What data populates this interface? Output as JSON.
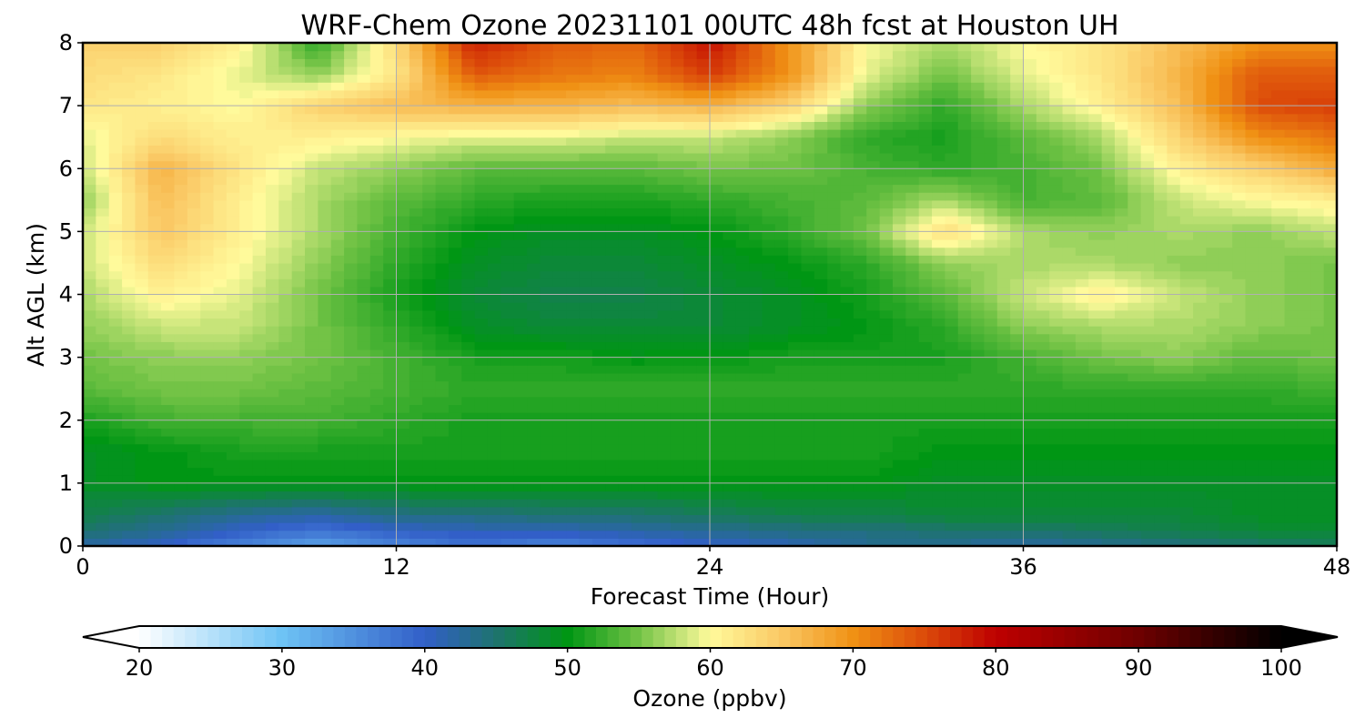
{
  "chart_data": {
    "type": "heatmap",
    "title": "WRF-Chem Ozone  20231101 00UTC 48h fcst at Houston UH",
    "xlabel": "Forecast Time (Hour)",
    "ylabel": "Alt AGL (km)",
    "xlim": [
      0,
      48
    ],
    "ylim": [
      0,
      8
    ],
    "x_ticks": [
      0,
      12,
      24,
      36,
      48
    ],
    "y_ticks": [
      0,
      1,
      2,
      3,
      4,
      5,
      6,
      7,
      8
    ],
    "grid": true,
    "x": [
      0,
      3,
      6,
      9,
      12,
      15,
      18,
      21,
      24,
      27,
      30,
      33,
      36,
      39,
      42,
      45,
      48
    ],
    "y": [
      0,
      0.25,
      0.5,
      1,
      1.5,
      2,
      2.5,
      3,
      3.5,
      4,
      4.5,
      5,
      5.5,
      6,
      6.5,
      7,
      7.5,
      8
    ],
    "z": [
      [
        42,
        40,
        36,
        33,
        36,
        38,
        36,
        38,
        40,
        41,
        43,
        43,
        42,
        43,
        44,
        45,
        46
      ],
      [
        45,
        43,
        40,
        38,
        40,
        41,
        41,
        42,
        43,
        44,
        44,
        45,
        45,
        46,
        47,
        48,
        48
      ],
      [
        47,
        45,
        43,
        42,
        44,
        44,
        45,
        45,
        46,
        47,
        47,
        48,
        48,
        48,
        48,
        49,
        49
      ],
      [
        49,
        50,
        50,
        50,
        50,
        50,
        50,
        50,
        50,
        50,
        50,
        49,
        49,
        49,
        49,
        49,
        49
      ],
      [
        49,
        50,
        51,
        51,
        51,
        51,
        51,
        51,
        51,
        51,
        51,
        50,
        50,
        50,
        50,
        50,
        50
      ],
      [
        51,
        53,
        53,
        53,
        52,
        51,
        51,
        51,
        51,
        51,
        51,
        51,
        51,
        51,
        51,
        51,
        51
      ],
      [
        54,
        55,
        55,
        54,
        53,
        52,
        52,
        52,
        52,
        52,
        52,
        52,
        52,
        52,
        52,
        52,
        53
      ],
      [
        55,
        56,
        56,
        55,
        53,
        51,
        51,
        50,
        50,
        51,
        51,
        51,
        53,
        55,
        56,
        54,
        55
      ],
      [
        56,
        58,
        58,
        55,
        52,
        49,
        48,
        48,
        48,
        49,
        50,
        52,
        56,
        57,
        57,
        56,
        55
      ],
      [
        57,
        61,
        59,
        55,
        51,
        48,
        47,
        47,
        48,
        49,
        51,
        54,
        58,
        61,
        58,
        56,
        55
      ],
      [
        58,
        63,
        60,
        56,
        52,
        49,
        48,
        48,
        49,
        50,
        52,
        56,
        57,
        57,
        56,
        56,
        55
      ],
      [
        58,
        65,
        61,
        57,
        53,
        50,
        49,
        49,
        50,
        52,
        55,
        63,
        57,
        56,
        57,
        56,
        58
      ],
      [
        56,
        66,
        61,
        57,
        54,
        52,
        51,
        51,
        52,
        53,
        54,
        57,
        53,
        54,
        58,
        60,
        61
      ],
      [
        58,
        67,
        62,
        58,
        56,
        54,
        54,
        54,
        55,
        55,
        53,
        52,
        53,
        55,
        61,
        64,
        68
      ],
      [
        59,
        63,
        61,
        61,
        60,
        59,
        59,
        58,
        58,
        56,
        52,
        51,
        54,
        57,
        64,
        70,
        72
      ],
      [
        62,
        61,
        60,
        64,
        66,
        67,
        67,
        66,
        67,
        64,
        56,
        52,
        57,
        61,
        66,
        75,
        76
      ],
      [
        63,
        62,
        59,
        56,
        62,
        74,
        72,
        71,
        76,
        70,
        59,
        55,
        59,
        62,
        67,
        74,
        74
      ],
      [
        64,
        64,
        61,
        52,
        63,
        78,
        74,
        73,
        79,
        70,
        60,
        57,
        60,
        62,
        66,
        70,
        70
      ]
    ],
    "colorbar": {
      "label": "Ozone  (ppbv)",
      "ticks": [
        20,
        30,
        40,
        50,
        60,
        70,
        80,
        90,
        100
      ],
      "min": 20,
      "max": 100,
      "extend": "both"
    }
  }
}
